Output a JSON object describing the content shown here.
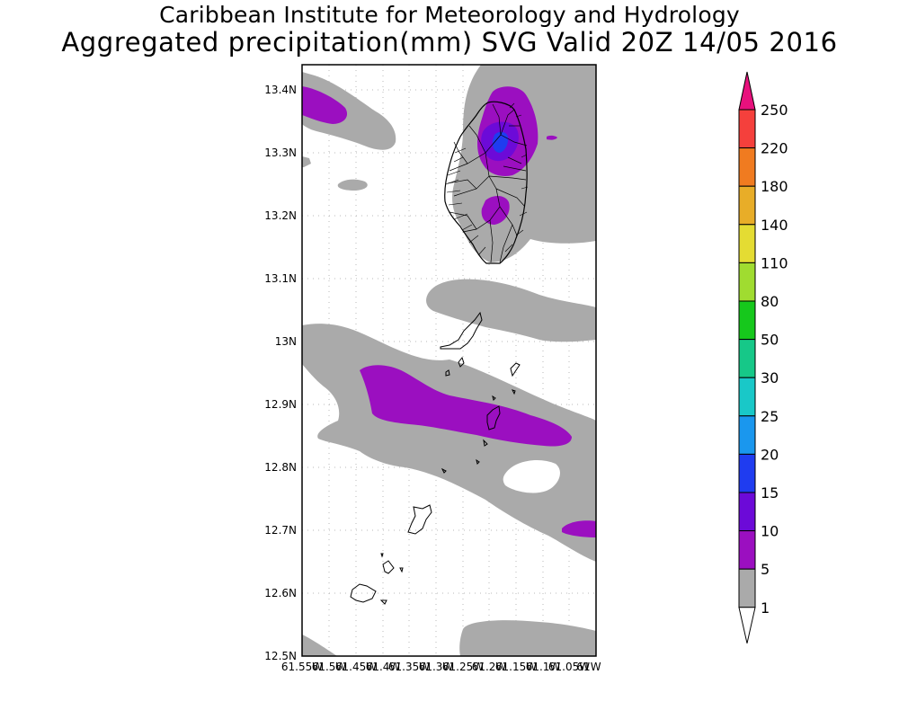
{
  "title": {
    "line1": "Caribbean Institute for Meteorology and Hydrology",
    "line2": "Aggregated precipitation(mm) SVG Valid 20Z 14/05 2016"
  },
  "map": {
    "lat_range": [
      12.5,
      13.44
    ],
    "lon_range": [
      -61.55,
      -61.0
    ],
    "lat_ticks": [
      "13.4N",
      "13.3N",
      "13.2N",
      "13.1N",
      "13N",
      "12.9N",
      "12.8N",
      "12.7N",
      "12.6N",
      "12.5N"
    ],
    "lon_ticks": [
      "61.55W",
      "61.5W",
      "61.45W",
      "61.4W",
      "61.35W",
      "61.3W",
      "61.25W",
      "61.2W",
      "61.15W",
      "61.1W",
      "61.05W",
      "61W"
    ]
  },
  "colorbar": {
    "labels": [
      "250",
      "220",
      "180",
      "140",
      "110",
      "80",
      "50",
      "30",
      "25",
      "20",
      "15",
      "10",
      "5",
      "1"
    ],
    "colors": [
      "#e8117d",
      "#f5403c",
      "#f07b20",
      "#e8ad28",
      "#e4dc33",
      "#a0dc30",
      "#16c81c",
      "#16c888",
      "#19c8c8",
      "#1a97ee",
      "#1f3cf0",
      "#6c0ad8",
      "#9b0fc0",
      "#aaaaaa",
      "#ffffff"
    ]
  },
  "colors": {
    "rain_1_5": "#aaaaaa",
    "rain_5_10": "#9b0fc0",
    "rain_10_15": "#6c0ad8",
    "rain_15_20": "#1f3cf0"
  }
}
